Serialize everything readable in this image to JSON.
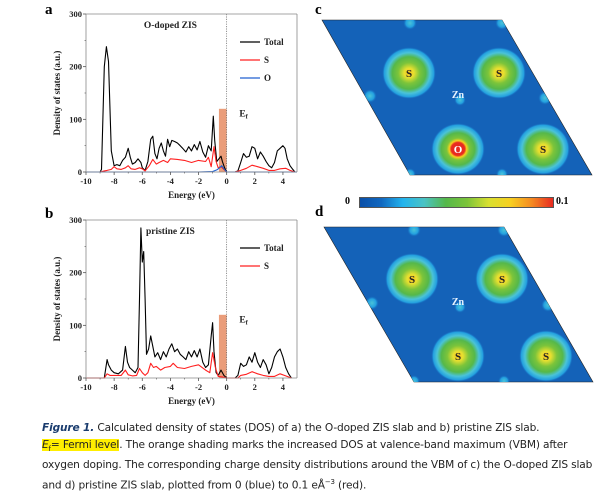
{
  "panels": {
    "a": {
      "letter": "a"
    },
    "b": {
      "letter": "b"
    },
    "c": {
      "letter": "c"
    },
    "d": {
      "letter": "d"
    }
  },
  "chart_data": [
    {
      "id": "a",
      "type": "line",
      "title": "O-doped ZIS",
      "xlabel": "Energy (eV)",
      "ylabel": "Density of states (a.u.)",
      "xlim": [
        -10,
        5
      ],
      "ylim": [
        0,
        300
      ],
      "xticks": [
        -10,
        -8,
        -6,
        -4,
        -2,
        0,
        2,
        4
      ],
      "yticks": [
        0,
        100,
        200,
        300
      ],
      "fermi_label": "E",
      "fermi_sub": "f",
      "fermi_level": 0,
      "shading": {
        "x0": -0.55,
        "x1": 0,
        "y": 120,
        "color": "#e8926c"
      },
      "legend": "top-right",
      "series": [
        {
          "name": "Total",
          "color": "#000000",
          "x": [
            -10,
            -9.0,
            -8.9,
            -8.7,
            -8.55,
            -8.4,
            -8.2,
            -8.0,
            -7.8,
            -7.6,
            -7.4,
            -7.2,
            -7.0,
            -6.85,
            -6.7,
            -6.5,
            -6.3,
            -6.1,
            -6.0,
            -5.8,
            -5.6,
            -5.4,
            -5.25,
            -5.1,
            -4.95,
            -4.8,
            -4.65,
            -4.5,
            -4.35,
            -4.2,
            -4.05,
            -3.9,
            -3.7,
            -3.5,
            -3.3,
            -3.1,
            -2.9,
            -2.7,
            -2.5,
            -2.3,
            -2.1,
            -1.9,
            -1.7,
            -1.5,
            -1.3,
            -1.1,
            -0.95,
            -0.85,
            -0.7,
            -0.55,
            -0.4,
            -0.3,
            -0.15,
            0,
            0.3,
            0.6,
            0.8,
            1.0,
            1.2,
            1.4,
            1.6,
            1.8,
            2.0,
            2.2,
            2.4,
            2.6,
            2.8,
            3.0,
            3.2,
            3.4,
            3.6,
            3.8,
            4.0,
            4.15,
            4.3,
            4.5,
            4.7,
            4.85
          ],
          "y": [
            0,
            0,
            5,
            200,
            238,
            210,
            40,
            12,
            14,
            12,
            22,
            28,
            45,
            28,
            15,
            18,
            25,
            18,
            8,
            3,
            20,
            62,
            68,
            35,
            25,
            45,
            55,
            40,
            30,
            62,
            48,
            60,
            58,
            55,
            50,
            44,
            38,
            48,
            40,
            52,
            42,
            58,
            38,
            28,
            50,
            40,
            106,
            60,
            20,
            25,
            30,
            20,
            8,
            0,
            0,
            0,
            2,
            18,
            35,
            28,
            30,
            48,
            45,
            25,
            38,
            30,
            20,
            12,
            8,
            18,
            40,
            45,
            50,
            45,
            25,
            12,
            5,
            0
          ],
          "_note": "values estimated from plot"
        },
        {
          "name": "S",
          "color": "#ff2020",
          "x": [
            -10,
            -9.0,
            -8.7,
            -8.5,
            -8.2,
            -8.0,
            -7.8,
            -7.5,
            -7.2,
            -7.0,
            -6.8,
            -6.5,
            -6.2,
            -6.0,
            -5.8,
            -5.5,
            -5.25,
            -5.0,
            -4.8,
            -4.5,
            -4.2,
            -4.0,
            -3.5,
            -3.0,
            -2.5,
            -2.0,
            -1.5,
            -1.3,
            -1.1,
            -0.9,
            -0.75,
            -0.6,
            -0.4,
            -0.2,
            0,
            0.6,
            1.0,
            1.4,
            1.8,
            2.2,
            2.6,
            3.0,
            3.4,
            3.8,
            4.2,
            4.5,
            4.85
          ],
          "y": [
            0,
            0,
            2,
            3,
            5,
            10,
            6,
            5,
            8,
            12,
            6,
            5,
            8,
            6,
            2,
            12,
            24,
            15,
            18,
            22,
            18,
            25,
            24,
            22,
            18,
            22,
            20,
            28,
            10,
            48,
            20,
            8,
            10,
            5,
            0,
            0,
            3,
            7,
            13,
            10,
            7,
            3,
            3,
            6,
            7,
            3,
            0
          ]
        },
        {
          "name": "O",
          "color": "#2060d0",
          "x": [
            -10,
            -2,
            -1.0,
            -0.7,
            -0.5,
            -0.35,
            -0.2,
            0,
            5
          ],
          "y": [
            0,
            0,
            1,
            4,
            8,
            12,
            6,
            0,
            0
          ]
        }
      ]
    },
    {
      "id": "b",
      "type": "line",
      "title": "pristine ZIS",
      "xlabel": "Energy (eV)",
      "ylabel": "Density of states (a.u.)",
      "xlim": [
        -10,
        5
      ],
      "ylim": [
        0,
        300
      ],
      "xticks": [
        -10,
        -8,
        -6,
        -4,
        -2,
        0,
        2,
        4
      ],
      "yticks": [
        0,
        100,
        200,
        300
      ],
      "fermi_label": "E",
      "fermi_sub": "f",
      "fermi_level": 0,
      "shading": {
        "x0": -0.55,
        "x1": 0,
        "y": 120,
        "color": "#e8926c"
      },
      "legend": "top-right",
      "series": [
        {
          "name": "Total",
          "color": "#000000",
          "x": [
            -10,
            -8.7,
            -8.5,
            -8.4,
            -8.2,
            -8.0,
            -7.7,
            -7.4,
            -7.2,
            -7.05,
            -6.9,
            -6.7,
            -6.5,
            -6.3,
            -6.2,
            -6.1,
            -6.0,
            -5.9,
            -5.8,
            -5.7,
            -5.55,
            -5.4,
            -5.25,
            -5.1,
            -4.9,
            -4.7,
            -4.5,
            -4.3,
            -4.1,
            -3.9,
            -3.7,
            -3.5,
            -3.3,
            -3.1,
            -2.9,
            -2.7,
            -2.5,
            -2.3,
            -2.1,
            -1.9,
            -1.7,
            -1.5,
            -1.3,
            -1.1,
            -1.0,
            -0.9,
            -0.75,
            -0.6,
            -0.4,
            -0.2,
            0,
            0.4,
            0.6,
            0.8,
            1.0,
            1.2,
            1.4,
            1.6,
            1.8,
            2.0,
            2.2,
            2.4,
            2.6,
            2.8,
            3.0,
            3.2,
            3.4,
            3.6,
            3.8,
            4.0,
            4.2,
            4.4,
            4.6
          ],
          "y": [
            0,
            0,
            35,
            25,
            15,
            10,
            8,
            15,
            60,
            30,
            20,
            15,
            10,
            20,
            150,
            285,
            220,
            240,
            150,
            45,
            55,
            80,
            60,
            40,
            48,
            35,
            50,
            40,
            55,
            65,
            50,
            55,
            45,
            40,
            35,
            50,
            40,
            52,
            40,
            55,
            30,
            20,
            25,
            80,
            105,
            50,
            10,
            5,
            15,
            5,
            0,
            0,
            0,
            5,
            28,
            22,
            25,
            40,
            30,
            48,
            30,
            20,
            35,
            25,
            8,
            20,
            40,
            50,
            55,
            40,
            20,
            8,
            0
          ]
        },
        {
          "name": "S",
          "color": "#ff2020",
          "x": [
            -10,
            -8.7,
            -8.5,
            -8.3,
            -8.0,
            -7.5,
            -7.2,
            -7.0,
            -6.7,
            -6.4,
            -6.2,
            -6.0,
            -5.8,
            -5.6,
            -5.4,
            -5.2,
            -5.0,
            -4.7,
            -4.4,
            -4.0,
            -3.8,
            -3.5,
            -3.0,
            -2.5,
            -2.0,
            -1.5,
            -1.2,
            -1.0,
            -0.8,
            -0.6,
            -0.3,
            0,
            0.8,
            1.0,
            1.4,
            1.8,
            2.2,
            2.6,
            3.0,
            3.4,
            3.8,
            4.2,
            4.6
          ],
          "y": [
            0,
            0,
            8,
            5,
            5,
            5,
            15,
            6,
            4,
            5,
            18,
            10,
            5,
            10,
            28,
            20,
            22,
            15,
            20,
            22,
            28,
            20,
            18,
            22,
            25,
            15,
            10,
            48,
            20,
            3,
            2,
            0,
            0,
            5,
            7,
            12,
            8,
            5,
            3,
            3,
            8,
            4,
            0
          ]
        }
      ]
    }
  ],
  "maps": {
    "c": {
      "atoms": [
        "S",
        "S",
        "Zn",
        "O",
        "S"
      ]
    },
    "d": {
      "atoms": [
        "S",
        "S",
        "Zn",
        "S",
        "S"
      ]
    }
  },
  "colorbar": {
    "min_label": "0",
    "max_label": "0.1",
    "colors": [
      "#0a4fa8",
      "#1168c0",
      "#23b4ee",
      "#4ac3c4",
      "#55b84a",
      "#7cc43a",
      "#d9e030",
      "#f7d020",
      "#f58a20",
      "#e82a20"
    ]
  },
  "caption": {
    "fig_label": "Figure 1.",
    "line1": " Calculated density of states (DOS) of a) the O-doped ZIS slab and b) pristine ZIS slab.",
    "hl_e": "E",
    "hl_sub": "f",
    "hl_rest": "= Fermi level",
    "line2": ". The orange shading marks the increased DOS at valence-band maximum (VBM) after oxygen doping. The corresponding charge density distributions around the VBM of c) the O-doped ZIS slab and d) pristine ZIS slab, plotted from 0 (blue) to 0.1 eÅ",
    "sup": "−3",
    "end": " (red)."
  }
}
